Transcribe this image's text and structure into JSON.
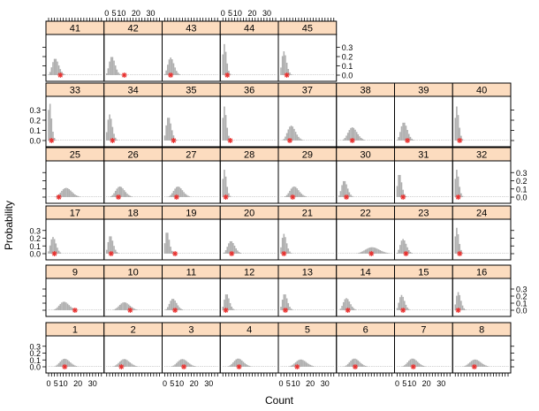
{
  "chart_data": {
    "type": "bar",
    "layout": "lattice",
    "ylabel": "Probability",
    "xlabel": "Count",
    "xlim": [
      0,
      36
    ],
    "ylim": [
      0,
      0.4
    ],
    "x_ticks": [
      0,
      5,
      10,
      20,
      30
    ],
    "x_tick_labels": [
      "0",
      "5",
      "10",
      "20",
      "30"
    ],
    "y_ticks": [
      0.0,
      0.1,
      0.2,
      0.3
    ],
    "y_tick_labels": [
      "0.0",
      "0.1",
      "0.2",
      "0.3"
    ],
    "panel_shape": "poisson",
    "bar_color": "#b0b0b0",
    "observed_color": "#e8312f",
    "strip_color": "#fcdcbf",
    "panels": [
      {
        "label": "1",
        "mean": 11.5,
        "observed": 11
      },
      {
        "label": "2",
        "mean": 12.5,
        "observed": 10
      },
      {
        "label": "3",
        "mean": 12.5,
        "observed": 13
      },
      {
        "label": "4",
        "mean": 11.0,
        "observed": 11
      },
      {
        "label": "5",
        "mean": 14.0,
        "observed": 11
      },
      {
        "label": "6",
        "mean": 11.0,
        "observed": 11
      },
      {
        "label": "7",
        "mean": 11.0,
        "observed": 11
      },
      {
        "label": "8",
        "mean": 14.0,
        "observed": 13
      },
      {
        "label": "9",
        "mean": 11.0,
        "observed": 18
      },
      {
        "label": "10",
        "mean": 12.5,
        "observed": 16
      },
      {
        "label": "11",
        "mean": 6.0,
        "observed": 7
      },
      {
        "label": "12",
        "mean": 3.0,
        "observed": 2
      },
      {
        "label": "13",
        "mean": 3.0,
        "observed": 3
      },
      {
        "label": "14",
        "mean": 5.5,
        "observed": 6
      },
      {
        "label": "15",
        "mean": 3.5,
        "observed": 4
      },
      {
        "label": "16",
        "mean": 2.5,
        "observed": 2
      },
      {
        "label": "17",
        "mean": 3.5,
        "observed": 4
      },
      {
        "label": "18",
        "mean": 3.0,
        "observed": 3
      },
      {
        "label": "19",
        "mean": 2.0,
        "observed": 7
      },
      {
        "label": "20",
        "mean": 6.0,
        "observed": 6
      },
      {
        "label": "21",
        "mean": 2.5,
        "observed": 2
      },
      {
        "label": "22",
        "mean": 23.0,
        "observed": 22
      },
      {
        "label": "23",
        "mean": 4.5,
        "observed": 6
      },
      {
        "label": "24",
        "mean": 1.5,
        "observed": 3
      },
      {
        "label": "25",
        "mean": 12.5,
        "observed": 7
      },
      {
        "label": "26",
        "mean": 9.5,
        "observed": 8
      },
      {
        "label": "27",
        "mean": 9.5,
        "observed": 8
      },
      {
        "label": "28",
        "mean": 1.5,
        "observed": 2
      },
      {
        "label": "29",
        "mean": 9.5,
        "observed": 8
      },
      {
        "label": "30",
        "mean": 4.0,
        "observed": 5
      },
      {
        "label": "31",
        "mean": 2.0,
        "observed": 4
      },
      {
        "label": "32",
        "mean": 1.5,
        "observed": 2
      },
      {
        "label": "33",
        "mean": 1.2,
        "observed": 2
      },
      {
        "label": "34",
        "mean": 2.5,
        "observed": 4
      },
      {
        "label": "35",
        "mean": 3.0,
        "observed": 6
      },
      {
        "label": "36",
        "mean": 1.5,
        "observed": 5
      },
      {
        "label": "37",
        "mean": 7.5,
        "observed": 6
      },
      {
        "label": "38",
        "mean": 9.5,
        "observed": 9
      },
      {
        "label": "39",
        "mean": 5.0,
        "observed": 7
      },
      {
        "label": "40",
        "mean": 1.5,
        "observed": 3
      },
      {
        "label": "41",
        "mean": 5.0,
        "observed": 8
      },
      {
        "label": "42",
        "mean": 4.0,
        "observed": 12
      },
      {
        "label": "43",
        "mean": 4.5,
        "observed": 4
      },
      {
        "label": "44",
        "mean": 1.5,
        "observed": 3
      },
      {
        "label": "45",
        "mean": 2.5,
        "observed": 4
      }
    ]
  }
}
